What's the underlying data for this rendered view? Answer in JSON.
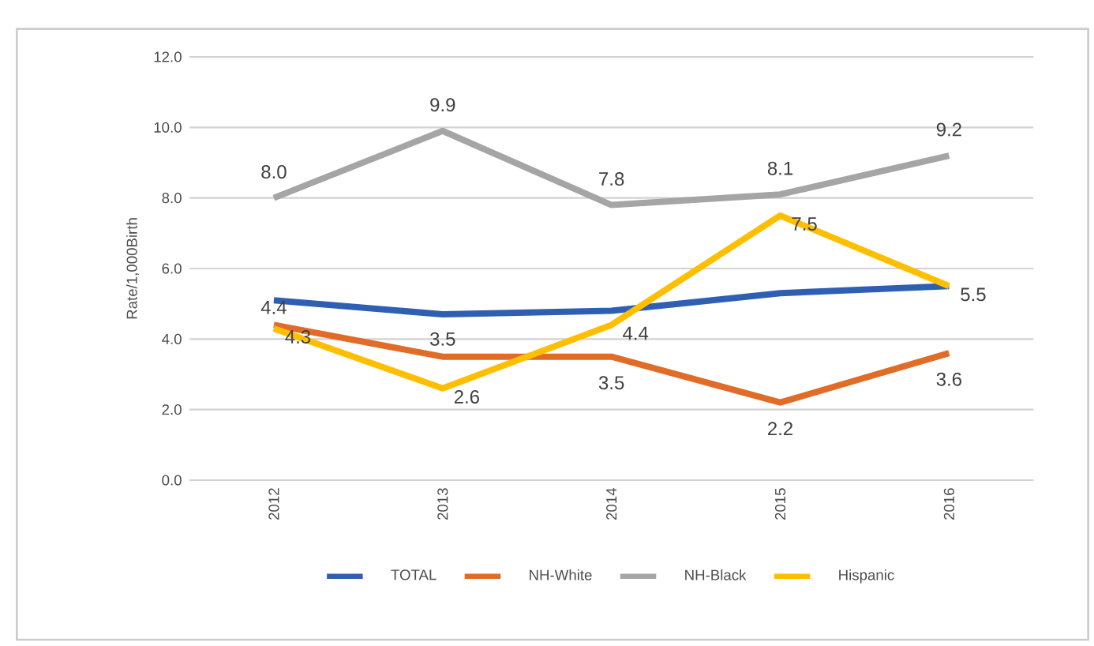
{
  "chart_data": {
    "type": "line",
    "ylabel": "Rate/1,000Birth",
    "categories": [
      "2012",
      "2013",
      "2014",
      "2015",
      "2016"
    ],
    "series": [
      {
        "name": "TOTAL",
        "color": "#2f5fb3",
        "values": [
          5.1,
          4.7,
          4.8,
          5.3,
          5.5
        ]
      },
      {
        "name": "NH-White",
        "color": "#e06c28",
        "values": [
          4.4,
          3.5,
          3.5,
          2.2,
          3.6
        ],
        "value_labels": [
          "4.4",
          "3.5",
          "3.5",
          "2.2",
          "3.6"
        ]
      },
      {
        "name": "NH-Black",
        "color": "#a5a5a5",
        "values": [
          8.0,
          9.9,
          7.8,
          8.1,
          9.2
        ],
        "value_labels": [
          "8.0",
          "9.9",
          "7.8",
          "8.1",
          "9.2"
        ]
      },
      {
        "name": "Hispanic",
        "color": "#ffbf00",
        "values": [
          4.3,
          2.6,
          4.4,
          7.5,
          5.5
        ],
        "value_labels": [
          "4.3",
          "2.6",
          "4.4",
          "7.5",
          "5.5"
        ]
      }
    ],
    "ylim": [
      0,
      12
    ],
    "yticks": [
      {
        "value": 0,
        "label": "0.0"
      },
      {
        "value": 2,
        "label": "2.0"
      },
      {
        "value": 4,
        "label": "4.0"
      },
      {
        "value": 6,
        "label": "6.0"
      },
      {
        "value": 8,
        "label": "8.0"
      },
      {
        "value": 10,
        "label": "10.0"
      },
      {
        "value": 12,
        "label": "12.0"
      }
    ],
    "grid": "y",
    "legend": "bottom",
    "marker": "none",
    "line_style": "solid"
  }
}
